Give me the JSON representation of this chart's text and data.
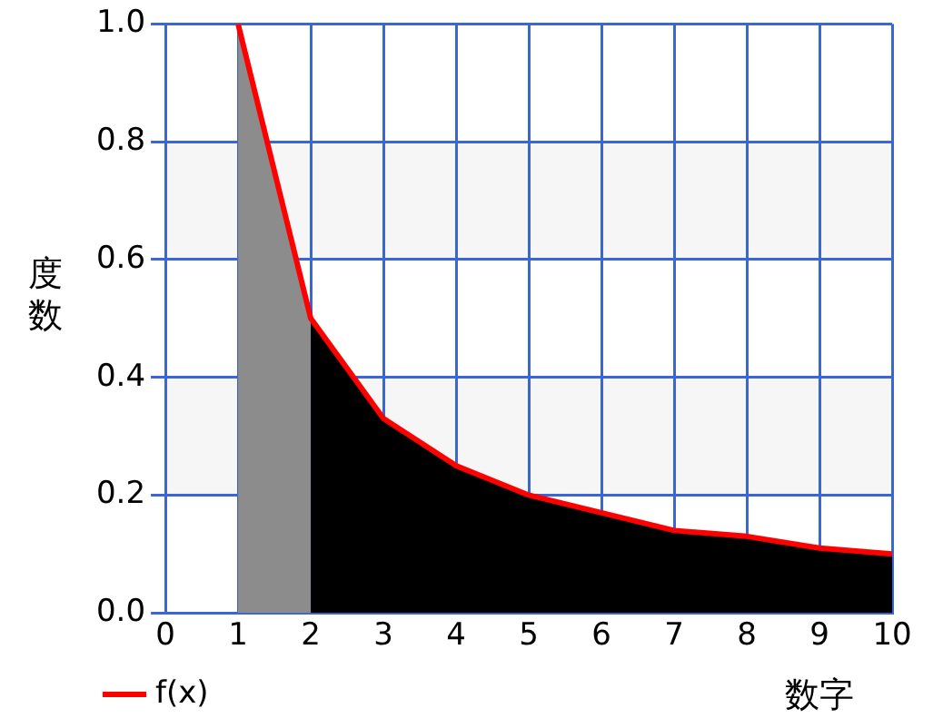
{
  "chart_data": {
    "type": "area",
    "xlabel": "数字",
    "ylabel": "度数",
    "series": [
      {
        "type": "area",
        "color": "#8c8c8c",
        "x": [
          1,
          2
        ],
        "values": [
          1,
          0.5
        ]
      },
      {
        "type": "area",
        "color": "#000000",
        "x": [
          2,
          3,
          4,
          5,
          6,
          7,
          8,
          9,
          10
        ],
        "values": [
          0.5,
          0.33,
          0.25,
          0.2,
          0.17,
          0.14,
          0.13,
          0.11,
          0.1
        ]
      },
      {
        "type": "line",
        "name": "f(x)",
        "color": "#ff0000",
        "x": [
          1,
          2,
          3,
          4,
          5,
          6,
          7,
          8,
          9,
          10
        ],
        "values": [
          1,
          0.5,
          0.33,
          0.25,
          0.2,
          0.17,
          0.14,
          0.13,
          0.11,
          0.1
        ]
      }
    ],
    "xlim": [
      0,
      10
    ],
    "xticks": [
      0,
      1,
      2,
      3,
      4,
      5,
      6,
      7,
      8,
      9,
      10
    ],
    "ylim": [
      0,
      1
    ],
    "yticks": [
      {
        "value": 0,
        "label": "0.0"
      },
      {
        "value": 0.2,
        "label": "0.2"
      },
      {
        "value": 0.4,
        "label": "0.4"
      },
      {
        "value": 0.6,
        "label": "0.6"
      },
      {
        "value": 0.8,
        "label": "0.8"
      },
      {
        "value": 1,
        "label": "1.0"
      }
    ],
    "bands": [
      {
        "axis": "y",
        "from": 0.2,
        "to": 0.4,
        "color": "#f6f6f6"
      },
      {
        "axis": "y",
        "from": 0.6,
        "to": 0.8,
        "color": "#f6f6f6"
      }
    ],
    "grid": true,
    "legend": "bottom left",
    "marker": "none",
    "line_style": "solid"
  }
}
